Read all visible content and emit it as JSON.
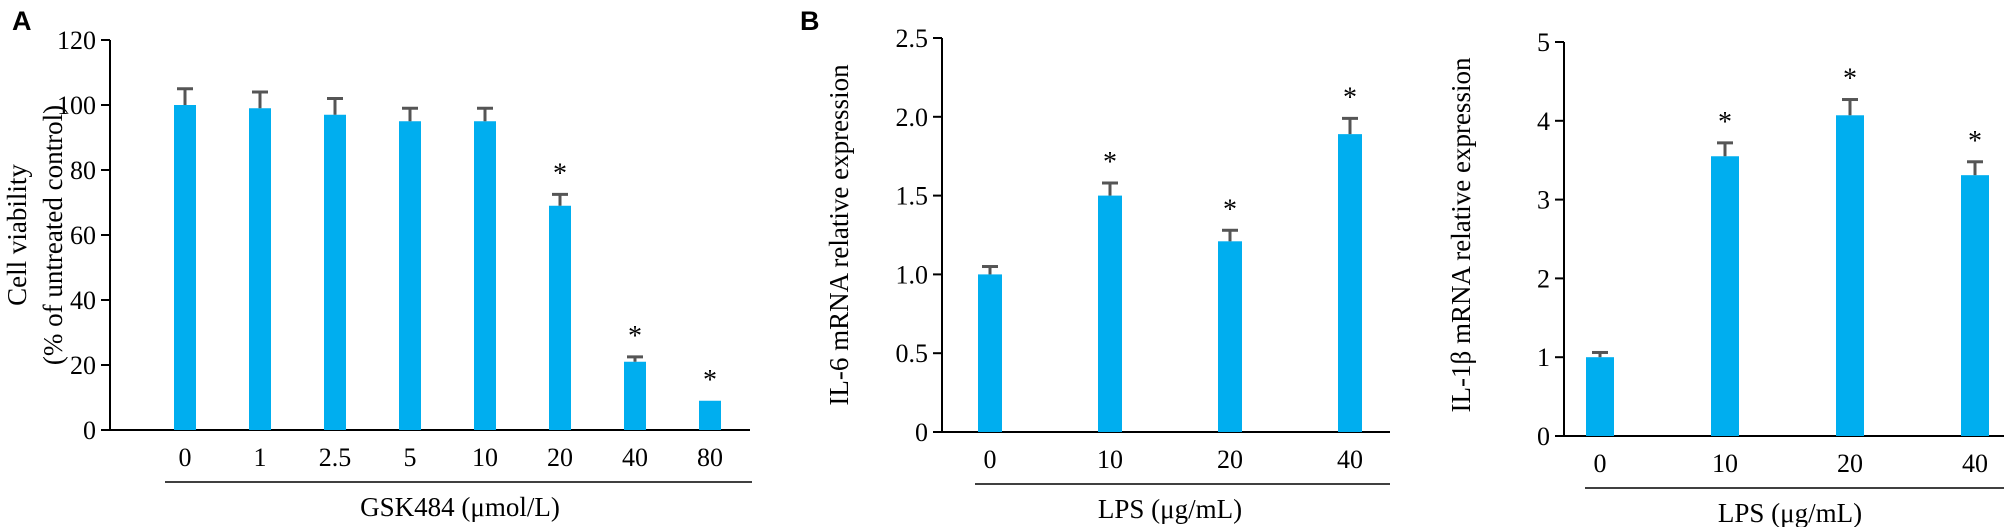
{
  "figure": {
    "bar_color": "#00aeef",
    "error_color": "#555555",
    "axis_color": "#000000"
  },
  "chart_data": [
    {
      "panel_label": "A",
      "type": "bar",
      "categories": [
        "0",
        "1",
        "2.5",
        "5",
        "10",
        "20",
        "40",
        "80"
      ],
      "values": [
        100,
        99,
        97,
        95,
        95,
        69,
        21,
        9
      ],
      "errors": [
        5,
        5,
        5,
        4,
        4,
        3.5,
        1.5,
        0
      ],
      "significant": [
        "",
        "",
        "",
        "",
        "",
        "*",
        "*",
        "*"
      ],
      "ylim": [
        0,
        120
      ],
      "yticks": [
        "0",
        "20",
        "40",
        "60",
        "80",
        "100",
        "120"
      ],
      "ylabel_lines": [
        "Cell viability",
        "(% of untreated control)"
      ],
      "xlabel": "GSK484 (μmol/L)",
      "grid": false
    },
    {
      "panel_label": "B",
      "type": "bar",
      "categories": [
        "0",
        "10",
        "20",
        "40"
      ],
      "values": [
        1.0,
        1.5,
        1.21,
        1.89
      ],
      "errors": [
        0.05,
        0.08,
        0.07,
        0.1
      ],
      "significant": [
        "",
        "*",
        "*",
        "*"
      ],
      "ylim": [
        0,
        2.5
      ],
      "yticks": [
        "0",
        "0.5",
        "1.0",
        "1.5",
        "2.0",
        "2.5"
      ],
      "ylabel_lines": [
        "IL-6 mRNA relative expression"
      ],
      "xlabel": "LPS (μg/mL)",
      "grid": false
    },
    {
      "panel_label": "",
      "type": "bar",
      "categories": [
        "0",
        "10",
        "20",
        "40"
      ],
      "values": [
        1.0,
        3.55,
        4.07,
        3.31
      ],
      "errors": [
        0.06,
        0.17,
        0.2,
        0.17
      ],
      "significant": [
        "",
        "*",
        "*",
        "*"
      ],
      "ylim": [
        0,
        5
      ],
      "yticks": [
        "0",
        "1",
        "2",
        "3",
        "4",
        "5"
      ],
      "ylabel_lines": [
        "IL-1β mRNA relative expression"
      ],
      "xlabel": "LPS (μg/mL)",
      "grid": false
    }
  ]
}
